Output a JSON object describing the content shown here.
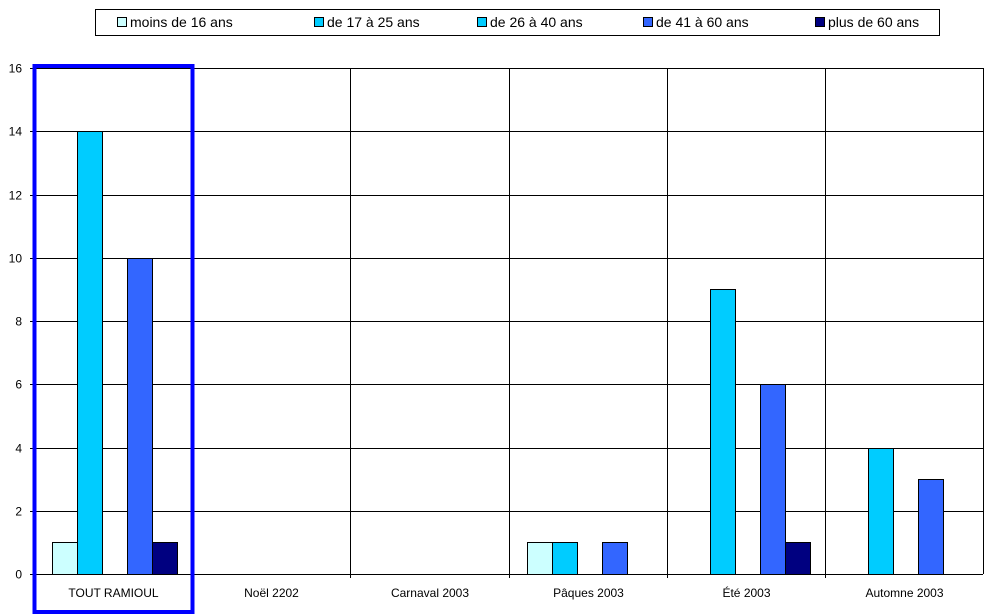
{
  "chart_data": {
    "type": "bar",
    "categories": [
      "TOUT RAMIOUL",
      "Noël 2202",
      "Carnaval 2003",
      "Pâques 2003",
      "Été 2003",
      "Automne 2003"
    ],
    "series": [
      {
        "name": "moins de 16 ans",
        "color": "#ccffff",
        "values": [
          1,
          0,
          0,
          1,
          0,
          0
        ]
      },
      {
        "name": "de 17 à 25 ans",
        "color": "#00ccff",
        "values": [
          14,
          0,
          0,
          1,
          9,
          4
        ]
      },
      {
        "name": "de 26 à 40 ans",
        "color": "#00ccff",
        "values": [
          0,
          0,
          0,
          0,
          0,
          0
        ]
      },
      {
        "name": "de 41 à 60 ans",
        "color": "#3366ff",
        "values": [
          10,
          0,
          0,
          1,
          6,
          3
        ]
      },
      {
        "name": "plus de 60 ans",
        "color": "#000080",
        "values": [
          1,
          0,
          0,
          0,
          1,
          0
        ]
      }
    ],
    "ylim": [
      0,
      16
    ],
    "yticks": [
      0,
      2,
      4,
      6,
      8,
      10,
      12,
      14,
      16
    ],
    "xlabel": "",
    "ylabel": "",
    "title": "",
    "grid": true,
    "legend_position": "top",
    "highlight_category": "TOUT RAMIOUL",
    "highlight_color": "#0000ff"
  }
}
